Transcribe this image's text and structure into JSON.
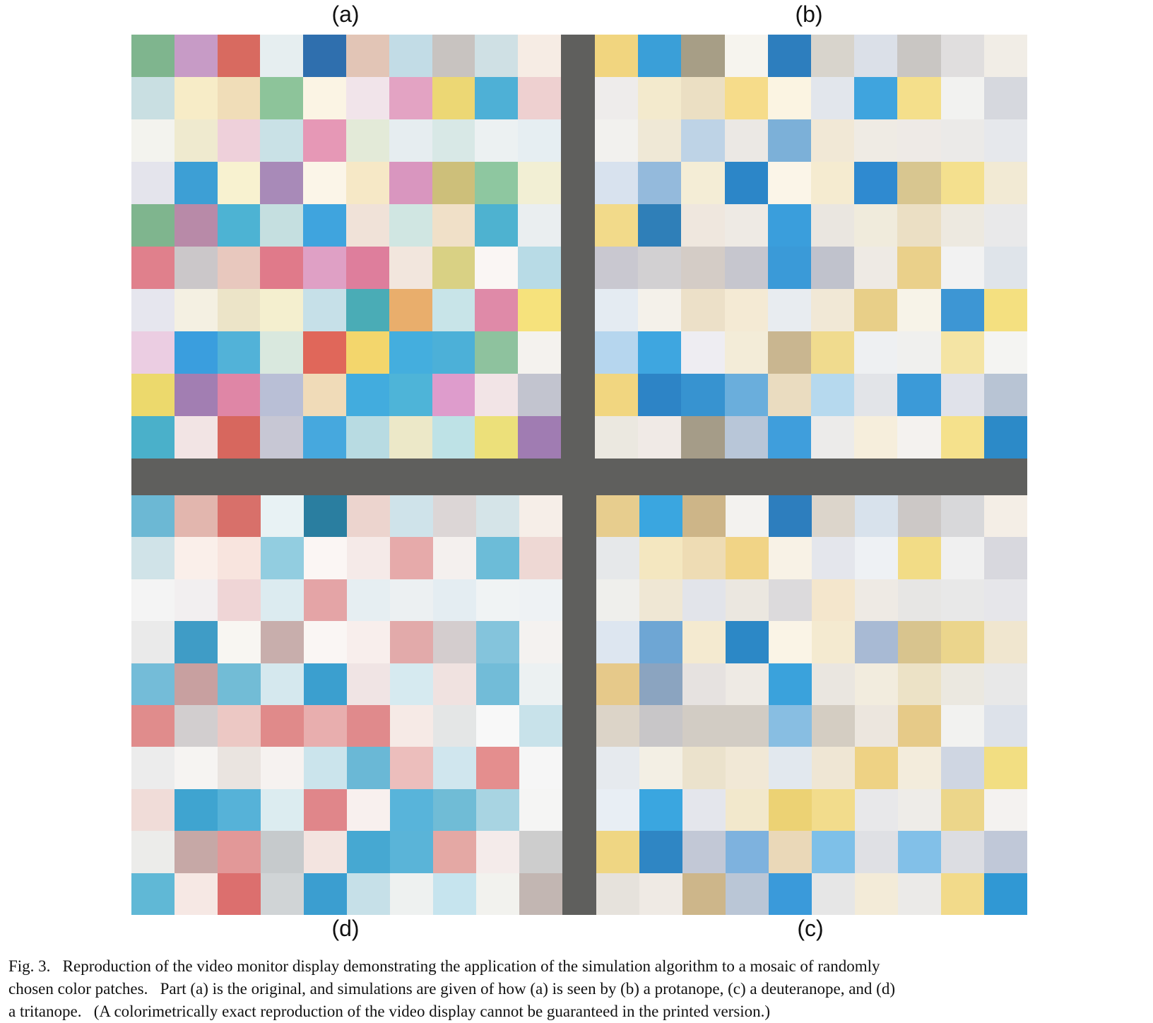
{
  "labels": {
    "a": "(a)",
    "b": "(b)",
    "c": "(c)",
    "d": "(d)"
  },
  "colors": {
    "background": "#ffffff",
    "separator": "#5f5f5d"
  },
  "panels": {
    "a": [
      [
        "#7fb58e",
        "#c79bc6",
        "#d86a60",
        "#e6eef0",
        "#2f6fae",
        "#e2c5b6",
        "#c2dce6",
        "#c8c3c0",
        "#cfe0e4",
        "#f6ece4"
      ],
      [
        "#c9dfe2",
        "#f7ecc7",
        "#f0ddb8",
        "#8dc49a",
        "#fbf4e4",
        "#f1e4ea",
        "#e3a3c3",
        "#ecd774",
        "#4eb0d6",
        "#eed0d0"
      ],
      [
        "#f3f3ee",
        "#efeacf",
        "#eed0da",
        "#c9e1e6",
        "#e698b6",
        "#e3ead8",
        "#e6edf0",
        "#d8e8e6",
        "#ecf1f2",
        "#e6eef2"
      ],
      [
        "#e4e4ec",
        "#3d9fd5",
        "#f8f2d0",
        "#a88ab8",
        "#fbf5e8",
        "#f6e8c6",
        "#d996bf",
        "#cdbf7a",
        "#8ec7a0",
        "#f2efd4"
      ],
      [
        "#7fb58e",
        "#b88aa8",
        "#4db3d3",
        "#c5dfe0",
        "#3fa4de",
        "#f0e2d8",
        "#d0e6e2",
        "#f0e0c8",
        "#4eb2d0",
        "#eaeef0"
      ],
      [
        "#e0808c",
        "#cbc7c9",
        "#e8c8be",
        "#e07a8a",
        "#dfa0c5",
        "#de7e9c",
        "#f2e6dd",
        "#d9d184",
        "#faf6f4",
        "#b8dbe6"
      ],
      [
        "#e6e6ee",
        "#f4f0e2",
        "#ece4c8",
        "#f4efcf",
        "#c6e0e8",
        "#4aacb6",
        "#e9ae6c",
        "#c8e4e8",
        "#df8aa8",
        "#f6e27c"
      ],
      [
        "#ebcde2",
        "#3a9ede",
        "#52b2d8",
        "#d9e8de",
        "#e0675a",
        "#f3d66c",
        "#44aede",
        "#4cb0d8",
        "#8ec29e",
        "#f4f2ee"
      ],
      [
        "#ecd96c",
        "#a27eb2",
        "#df86a6",
        "#b9bfd6",
        "#f0dbb8",
        "#42acde",
        "#4eb4d8",
        "#de9ccc",
        "#f2e4e6",
        "#c2c4cf"
      ],
      [
        "#4ab0ca",
        "#f2e4e4",
        "#d7675e",
        "#c7c7d4",
        "#46a8de",
        "#b8dbe2",
        "#ece8c8",
        "#bee2e6",
        "#ece07a",
        "#a07cb2"
      ]
    ],
    "b": [
      [
        "#f1d57f",
        "#3a9fd8",
        "#a79e86",
        "#f6f4ee",
        "#2d7ebe",
        "#d8d4cc",
        "#dbe0e8",
        "#c9c6c3",
        "#e0dede",
        "#f1ede6"
      ],
      [
        "#eeeceb",
        "#f3eacd",
        "#ebdfc3",
        "#f6dc8a",
        "#fbf4e2",
        "#e2e6ec",
        "#3fa4de",
        "#f4df8b",
        "#f2f2f0",
        "#d6d8de"
      ],
      [
        "#f2f1ee",
        "#efe8d6",
        "#bed3e6",
        "#ebe8e4",
        "#7cb0d8",
        "#f1e8d6",
        "#efebe4",
        "#eeeae6",
        "#ebeae8",
        "#e6e8ec"
      ],
      [
        "#d8e2ee",
        "#94badc",
        "#f4edd6",
        "#2c86c8",
        "#fbf5e8",
        "#f5ebd0",
        "#2f8ad0",
        "#d8c690",
        "#f4e08e",
        "#f2ead4"
      ],
      [
        "#f2da8a",
        "#2f7fb8",
        "#efe7de",
        "#eeeae4",
        "#3a9edc",
        "#eae6e0",
        "#f0ebdc",
        "#ebdfc4",
        "#ede9e0",
        "#e9e9ea"
      ],
      [
        "#c9c8d0",
        "#d2d0d2",
        "#d4ccc6",
        "#c6c6ce",
        "#3a9ad8",
        "#c0c2cc",
        "#eeeae4",
        "#ead08a",
        "#f2f2f2",
        "#dfe4ea"
      ],
      [
        "#e4ebf2",
        "#f4f1ea",
        "#ece0c8",
        "#f4ead4",
        "#e8ecf0",
        "#f1e8d6",
        "#e8cf88",
        "#f7f3e8",
        "#3d96d4",
        "#f4e080"
      ],
      [
        "#b6d6ee",
        "#3ea6e0",
        "#eeedf2",
        "#f3ecd8",
        "#c9b690",
        "#f0db8e",
        "#eef0f2",
        "#f0f0ee",
        "#f4e4a4",
        "#f4f4f2"
      ],
      [
        "#f1d680",
        "#2d84c6",
        "#3793d0",
        "#6aaedc",
        "#eadcc0",
        "#b6d9ee",
        "#e2e4e8",
        "#3b9ad8",
        "#e0e2ea",
        "#b8c4d4"
      ],
      [
        "#ebe8e0",
        "#f0eae6",
        "#a59c88",
        "#b8c6d8",
        "#3f9edc",
        "#ecebea",
        "#f6eedc",
        "#f4f2ef",
        "#f5e18c",
        "#2c8ac8"
      ]
    ],
    "c": [
      [
        "#e7cd8e",
        "#3aa6e0",
        "#cdb588",
        "#f3f2ef",
        "#2d7ebe",
        "#dcd5cb",
        "#d8e2ec",
        "#ccc8c6",
        "#d8d8da",
        "#f4eee6"
      ],
      [
        "#e6e8ea",
        "#f4e7c0",
        "#eedcb4",
        "#f1d486",
        "#f8f2e6",
        "#e4e6ec",
        "#eef1f4",
        "#f2dc86",
        "#f0f0f0",
        "#d8d8de"
      ],
      [
        "#efefec",
        "#efe7d4",
        "#e2e4ea",
        "#ebe7e0",
        "#dcdadc",
        "#f4e6cc",
        "#eeeae4",
        "#e7e6e4",
        "#e8e8e8",
        "#e6e6ea"
      ],
      [
        "#dde6f0",
        "#6ea6d4",
        "#f4ead0",
        "#2c88c6",
        "#faf4e6",
        "#f4ead0",
        "#a8bad4",
        "#d8c48e",
        "#ebd58c",
        "#f0e6cf"
      ],
      [
        "#e6c98a",
        "#8ba4c0",
        "#e6e2e0",
        "#eeeae4",
        "#3aa2dc",
        "#eae6e0",
        "#f2ecde",
        "#ece2c6",
        "#ebe8e0",
        "#e8e8e8"
      ],
      [
        "#dcd4c8",
        "#c8c6c8",
        "#d2ccc4",
        "#d2ccc4",
        "#88bee2",
        "#d4cdc2",
        "#ece6de",
        "#e6ca88",
        "#f2f2f0",
        "#dde2ea"
      ],
      [
        "#e6eaee",
        "#f3efe4",
        "#ebe2cc",
        "#f1e8d6",
        "#e2e8ee",
        "#efe6d4",
        "#eed284",
        "#f3ecdc",
        "#cfd6e2",
        "#f2de82"
      ],
      [
        "#e8eef4",
        "#3aa6e0",
        "#e4e6ec",
        "#f2e8cc",
        "#ecd274",
        "#f2dc8c",
        "#e8e8ea",
        "#eeece8",
        "#ecd68a",
        "#f4f2f0"
      ],
      [
        "#efd683",
        "#2f86c4",
        "#c2c8d6",
        "#7eb2de",
        "#ead8b8",
        "#7ec0e8",
        "#dfe0e4",
        "#82c0e8",
        "#dcdde2",
        "#c0c8d8"
      ],
      [
        "#e6e2dc",
        "#efeae4",
        "#cdb68a",
        "#bac6d6",
        "#3a9ada",
        "#e6e6e6",
        "#f3ebd8",
        "#ebeae8",
        "#f2da8a",
        "#3098d4"
      ]
    ],
    "d": [
      [
        "#6cb8d4",
        "#e2b6ae",
        "#d8706a",
        "#e8f2f4",
        "#2a7ea0",
        "#ecd4ce",
        "#cfe3ea",
        "#dcd6d6",
        "#d5e4e8",
        "#f6eee8"
      ],
      [
        "#d0e3e8",
        "#faefea",
        "#f8e4de",
        "#92cde0",
        "#fbf6f4",
        "#f5eae8",
        "#e6aaaa",
        "#f4f0ee",
        "#6cbcd8",
        "#eed8d4"
      ],
      [
        "#f4f4f4",
        "#f2eff0",
        "#efd5d6",
        "#dcebf0",
        "#e4a4a6",
        "#e6eef2",
        "#ecf0f2",
        "#e4edf2",
        "#f0f3f4",
        "#eef2f4"
      ],
      [
        "#eaeaea",
        "#3f9cc6",
        "#f8f6f2",
        "#c8aeac",
        "#faf6f4",
        "#f8eeec",
        "#e2aaaa",
        "#d4cdce",
        "#84c4dc",
        "#f4f2f0"
      ],
      [
        "#74bcd8",
        "#c8a0a0",
        "#72bcd6",
        "#d5e8ee",
        "#3b9fcf",
        "#f0e4e4",
        "#d6eaf0",
        "#f0e2e0",
        "#72bcd8",
        "#ecf1f2"
      ],
      [
        "#e08c8c",
        "#d2cecf",
        "#ecc8c4",
        "#e08a8a",
        "#e8aeae",
        "#e08a8c",
        "#f6eae6",
        "#e4e6e6",
        "#f8f8f8",
        "#c8e2ea"
      ],
      [
        "#ececec",
        "#f6f4f2",
        "#eae4e0",
        "#f6f2f0",
        "#cbe4ec",
        "#6ab8d6",
        "#ecbebc",
        "#d0e6ee",
        "#e48e8e",
        "#f6f6f6"
      ],
      [
        "#f0dcd8",
        "#3fa4d0",
        "#56b2d8",
        "#dcecf0",
        "#e0868a",
        "#f8f0ee",
        "#58b4da",
        "#70bcd6",
        "#a8d4e2",
        "#f5f5f4"
      ],
      [
        "#ececea",
        "#c6a8a6",
        "#e29898",
        "#c6cacc",
        "#f3e4e0",
        "#46a8d2",
        "#5ab4d8",
        "#e4a8a4",
        "#f4ebea",
        "#cdcdcd"
      ],
      [
        "#60b8d6",
        "#f6e8e4",
        "#dc6f6e",
        "#d0d4d6",
        "#3b9ed0",
        "#c6e0e8",
        "#eef1f0",
        "#c6e4ee",
        "#f2f2ee",
        "#c2b6b2"
      ]
    ]
  },
  "caption": {
    "line1": "Fig. 3.   Reproduction of the video monitor display demonstrating the application of the simulation algorithm to a mosaic of randomly",
    "line2": "chosen color patches.   Part (a) is the original, and simulations are given of how (a) is seen by (b) a protanope, (c) a deuteranope, and (d)",
    "line3": "a tritanope.   (A colorimetrically exact reproduction of the video display cannot be guaranteed in the printed version.)"
  }
}
